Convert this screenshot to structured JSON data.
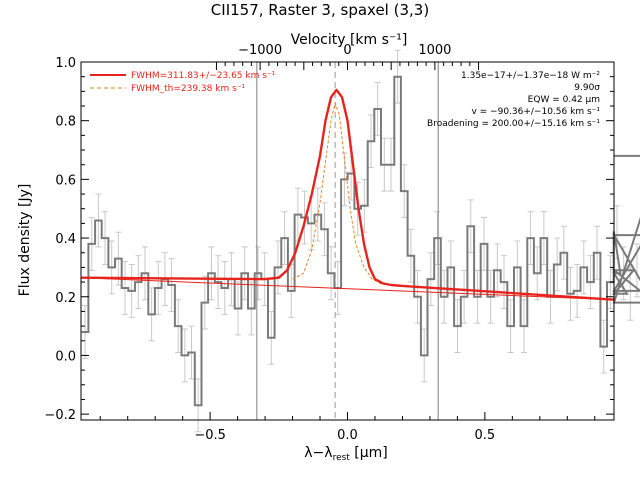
{
  "chart_data": {
    "type": "line",
    "title": "CII157, Raster 3, spaxel (3,3)",
    "top_axis": {
      "label": "Velocity [km s⁻¹]",
      "ticks": [
        {
          "v": -1000,
          "label": "−1000"
        },
        {
          "v": 0,
          "label": "0"
        },
        {
          "v": 1000,
          "label": "1000"
        }
      ]
    },
    "xlabel": "λ−λ",
    "xlabel_sub": "rest",
    "xlabel_tail": " [μm]",
    "ylabel": "Flux density [Jy]",
    "xlim": [
      -0.97,
      0.97
    ],
    "ylim": [
      -0.22,
      1.0
    ],
    "x_ticks": [
      {
        "v": -0.5,
        "label": "−0.5"
      },
      {
        "v": 0.0,
        "label": "0.0"
      },
      {
        "v": 0.5,
        "label": "0.5"
      }
    ],
    "y_ticks": [
      {
        "v": -0.2,
        "label": "−0.2"
      },
      {
        "v": 0.0,
        "label": "0.0"
      },
      {
        "v": 0.2,
        "label": "0.2"
      },
      {
        "v": 0.4,
        "label": "0.4"
      },
      {
        "v": 0.6,
        "label": "0.6"
      },
      {
        "v": 0.8,
        "label": "0.8"
      },
      {
        "v": 1.0,
        "label": "1.0"
      }
    ],
    "vertical_lines": [
      -0.33,
      0.33
    ],
    "line_center": -0.045,
    "legend": [
      {
        "label": "FWHM=311.83+/−23.65 km s⁻¹",
        "style": "solid"
      },
      {
        "label": "FWHM_th=239.38 km s⁻¹",
        "style": "dashed"
      }
    ],
    "annotations": [
      "1.35e−17+/−1.37e−18 W m⁻²",
      "9.90σ",
      "EQW = 0.42 μm",
      "v = −90.36+/−10.56 km s⁻¹",
      "Broadening = 200.00+/−15.16 km s⁻¹"
    ],
    "colors": {
      "data": "#7a7a7a",
      "errorbar": "#c8c8c8",
      "fit": "#e8231b",
      "thfit": "#e8832a",
      "vline": "#808080"
    },
    "spectrum": {
      "bin_width": 0.0242,
      "x_start": -0.955,
      "flux": [
        0.08,
        0.38,
        0.46,
        0.4,
        0.3,
        0.33,
        0.23,
        0.22,
        0.25,
        0.28,
        0.14,
        0.23,
        0.26,
        0.24,
        0.1,
        0.0,
        0.01,
        -0.17,
        0.18,
        0.28,
        0.25,
        0.23,
        0.26,
        0.16,
        0.28,
        0.16,
        0.28,
        0.26,
        0.06,
        0.3,
        0.4,
        0.22,
        0.48,
        0.47,
        0.45,
        0.48,
        0.43,
        0.28,
        0.23,
        0.6,
        0.62,
        0.5,
        0.51,
        0.73,
        0.84,
        0.65,
        0.65,
        0.95,
        0.56,
        0.34,
        0.2,
        0.0,
        0.26,
        0.4,
        0.2,
        0.3,
        0.1,
        0.2,
        0.44,
        0.2,
        0.38,
        0.2,
        0.29,
        0.25,
        0.1,
        0.3,
        0.1,
        0.4,
        0.28,
        0.4,
        0.2,
        0.31,
        0.35,
        0.21,
        0.22,
        0.3,
        0.25,
        0.35,
        0.03,
        0.25,
        0.42,
        0.28,
        0.21,
        0.29,
        0.22,
        0.41,
        0.18,
        0.68
      ],
      "err": [
        0.09,
        0.09,
        0.09,
        0.09,
        0.09,
        0.09,
        0.09,
        0.09,
        0.09,
        0.09,
        0.09,
        0.09,
        0.09,
        0.09,
        0.09,
        0.09,
        0.09,
        0.09,
        0.09,
        0.09,
        0.09,
        0.09,
        0.09,
        0.09,
        0.09,
        0.09,
        0.09,
        0.09,
        0.09,
        0.09,
        0.09,
        0.09,
        0.09,
        0.09,
        0.09,
        0.09,
        0.09,
        0.09,
        0.09,
        0.09,
        0.09,
        0.09,
        0.09,
        0.09,
        0.09,
        0.09,
        0.09,
        0.09,
        0.09,
        0.09,
        0.09,
        0.09,
        0.09,
        0.09,
        0.09,
        0.09,
        0.09,
        0.09,
        0.09,
        0.09,
        0.09,
        0.09,
        0.09,
        0.09,
        0.09,
        0.09,
        0.09,
        0.09,
        0.09,
        0.09,
        0.09,
        0.09,
        0.09,
        0.09,
        0.09,
        0.09,
        0.09,
        0.09,
        0.09,
        0.09,
        0.09,
        0.09,
        0.09,
        0.09,
        0.09,
        0.09,
        0.09,
        0.09
      ]
    },
    "fit": {
      "x": [
        -0.97,
        -0.3,
        -0.25,
        -0.22,
        -0.19,
        -0.16,
        -0.13,
        -0.1,
        -0.08,
        -0.06,
        -0.04,
        -0.02,
        0.0,
        0.02,
        0.04,
        0.06,
        0.08,
        0.1,
        0.13,
        0.16,
        0.2,
        0.97
      ],
      "y": [
        0.265,
        0.26,
        0.265,
        0.29,
        0.35,
        0.44,
        0.55,
        0.68,
        0.8,
        0.88,
        0.905,
        0.88,
        0.8,
        0.65,
        0.5,
        0.38,
        0.3,
        0.26,
        0.245,
        0.24,
        0.237,
        0.19
      ]
    },
    "thfit": {
      "x": [
        -0.2,
        -0.16,
        -0.13,
        -0.1,
        -0.08,
        -0.06,
        -0.045,
        -0.03,
        -0.01,
        0.01,
        0.03,
        0.06,
        0.09,
        0.12,
        0.16
      ],
      "y": [
        0.26,
        0.28,
        0.36,
        0.52,
        0.66,
        0.8,
        0.86,
        0.82,
        0.66,
        0.5,
        0.38,
        0.3,
        0.26,
        0.245,
        0.24
      ]
    },
    "continuum": {
      "x": [
        -0.97,
        0.97
      ],
      "y": [
        0.265,
        0.19
      ]
    }
  }
}
